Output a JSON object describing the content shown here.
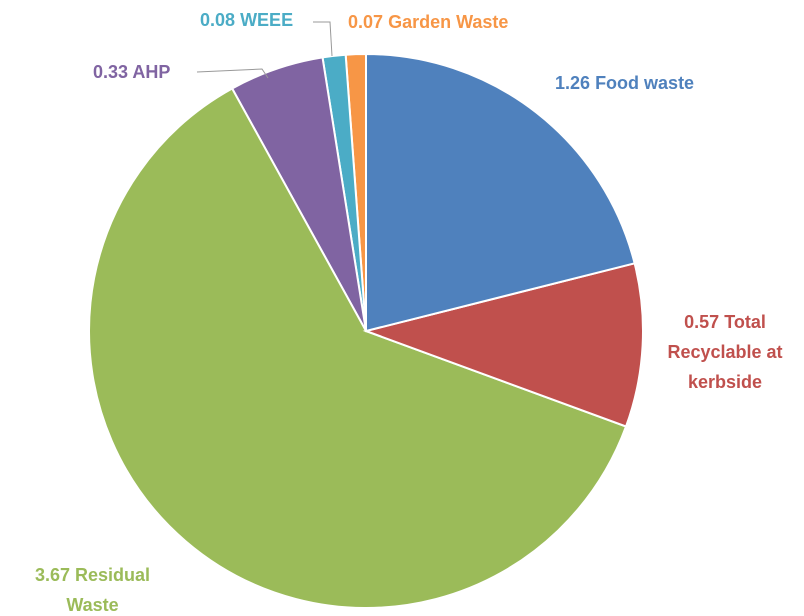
{
  "chart_data": {
    "type": "pie",
    "categories": [
      "Food waste",
      "Total Recyclable at kerbside",
      "Residual Waste",
      "AHP",
      "WEEE",
      "Garden Waste"
    ],
    "values": [
      1.26,
      0.57,
      3.67,
      0.33,
      0.08,
      0.07
    ],
    "colors": [
      "#4f81bd",
      "#c0504d",
      "#9bbb59",
      "#8064a2",
      "#4bacc6",
      "#f79646"
    ]
  }
}
